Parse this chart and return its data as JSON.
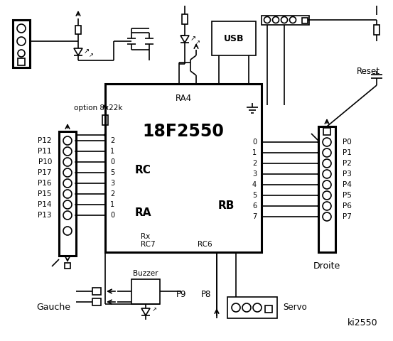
{
  "bg_color": "#ffffff",
  "left_pins_labels": [
    "P12",
    "P11",
    "P10",
    "P17",
    "P16",
    "P15",
    "P14",
    "P13"
  ],
  "right_pins_labels": [
    "P0",
    "P1",
    "P2",
    "P3",
    "P4",
    "P5",
    "P6",
    "P7"
  ],
  "left_rc_numbers": [
    "2",
    "1",
    "0"
  ],
  "left_ra_numbers": [
    "5",
    "3",
    "2",
    "1",
    "0"
  ],
  "right_rb_numbers": [
    "0",
    "1",
    "2",
    "3",
    "4",
    "5",
    "6",
    "7"
  ],
  "option_label": "option 8x22k",
  "gauche_label": "Gauche",
  "droite_label": "Droite",
  "servo_label": "Servo",
  "buzzer_label": "Buzzer",
  "usb_label": "USB",
  "reset_label": "Reset",
  "ki_label": "ki2550",
  "ra4_label": "RA4",
  "chip_label": "18F2550",
  "rc_label": "RC",
  "ra_label": "RA",
  "rb_label": "RB",
  "rx_label": "Rx",
  "rc7_label": "RC7",
  "rc6_label": "RC6",
  "p8_label": "P8",
  "p9_label": "P9"
}
